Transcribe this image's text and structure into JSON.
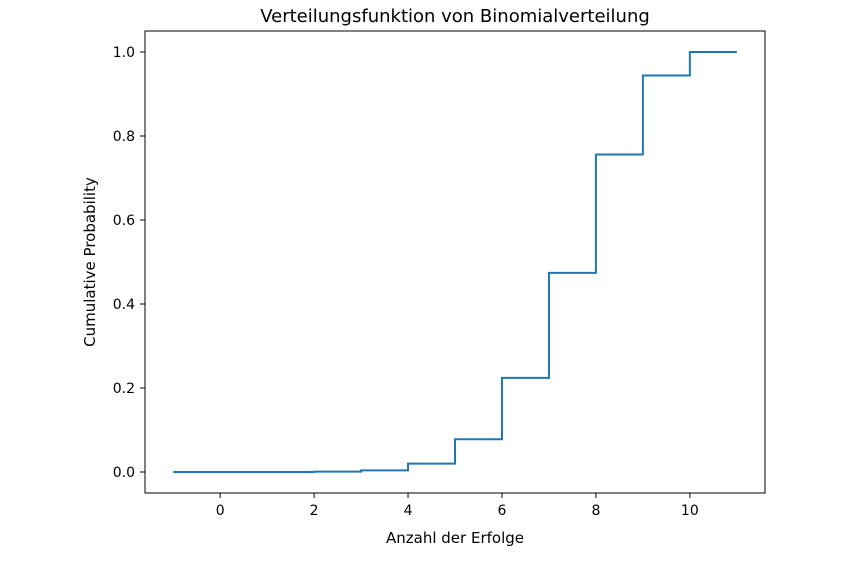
{
  "chart_data": {
    "type": "line",
    "title": "Verteilungsfunktion von Binomialverteilung",
    "xlabel": "Anzahl der Erfolge",
    "ylabel": "Cumulative Probability",
    "xlim": [
      -1.6,
      11.6
    ],
    "ylim": [
      -0.05,
      1.05
    ],
    "xticks": [
      0,
      2,
      4,
      6,
      8,
      10
    ],
    "xtick_labels": [
      "0",
      "2",
      "4",
      "6",
      "8",
      "10"
    ],
    "yticks": [
      0.0,
      0.2,
      0.4,
      0.6,
      0.8,
      1.0
    ],
    "ytick_labels": [
      "0.0",
      "0.2",
      "0.4",
      "0.6",
      "0.8",
      "1.0"
    ],
    "grid": false,
    "step": "post",
    "series": [
      {
        "color": "#1f77b4",
        "x": [
          -1,
          0,
          1,
          2,
          3,
          4,
          5,
          6,
          7,
          8,
          9,
          10,
          11
        ],
        "y": [
          0.0,
          0.0,
          0.0,
          0.001,
          0.004,
          0.02,
          0.078,
          0.224,
          0.474,
          0.756,
          0.944,
          1.0,
          1.0
        ]
      }
    ]
  }
}
